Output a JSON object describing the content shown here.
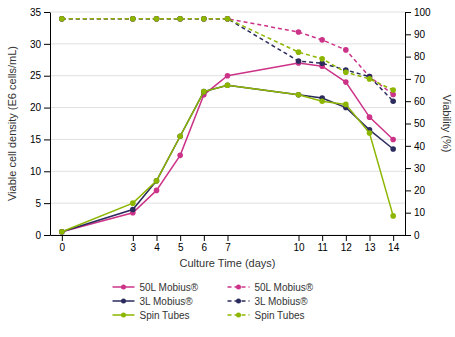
{
  "chart_data": {
    "type": "line",
    "xlabel": "Culture Time (days)",
    "ylabel": "Viable cell density (E6 cells/mL)",
    "y2label": "Viability (%)",
    "x": [
      0,
      3,
      4,
      5,
      6,
      7,
      10,
      11,
      12,
      13,
      14
    ],
    "xlim": [
      -0.5,
      14.5
    ],
    "xticks": [
      0,
      3,
      4,
      5,
      6,
      7,
      10,
      11,
      12,
      13,
      14
    ],
    "ylim": [
      0,
      35
    ],
    "yticks": [
      0,
      5,
      10,
      15,
      20,
      25,
      30,
      35
    ],
    "y2lim": [
      0,
      100
    ],
    "y2ticks": [
      0,
      10,
      20,
      30,
      40,
      50,
      60,
      70,
      80,
      90,
      100
    ],
    "grid": true,
    "legend": "bottom",
    "series": [
      {
        "name": "50L Mobius®",
        "color": "#cc3388",
        "marker": "circle",
        "line_style": "solid",
        "values": [
          0.5,
          3.5,
          7.0,
          12.5,
          22.0,
          25.0,
          27.0,
          26.5,
          24.0,
          18.5,
          15.0
        ]
      },
      {
        "name": "3L Mobius®",
        "color": "#2b2b5e",
        "marker": "circle",
        "line_style": "solid",
        "values": [
          0.5,
          4.0,
          8.5,
          15.5,
          22.5,
          23.5,
          22.0,
          21.5,
          20.0,
          16.5,
          13.5
        ]
      },
      {
        "name": "Spin Tubes",
        "color": "#8db600",
        "marker": "circle",
        "line_style": "solid",
        "values": [
          0.5,
          5.0,
          8.5,
          15.5,
          22.5,
          23.5,
          22.0,
          21.0,
          20.5,
          16.0,
          3.0
        ]
      },
      {
        "name": "50L Mobius®",
        "color": "#cc3388",
        "marker": "circle",
        "line_style": "dashed",
        "axis": "y2",
        "values": [
          97,
          97,
          97,
          97,
          97,
          97,
          91,
          87.5,
          83,
          71,
          63
        ]
      },
      {
        "name": "3L Mobius®",
        "color": "#2b2b5e",
        "marker": "circle",
        "line_style": "dashed",
        "axis": "y2",
        "values": [
          97,
          97,
          97,
          97,
          97,
          97,
          78,
          77,
          74,
          71,
          60
        ]
      },
      {
        "name": "Spin Tubes",
        "color": "#8db600",
        "marker": "circle",
        "line_style": "dashed",
        "axis": "y2",
        "values": [
          97,
          97,
          97,
          97,
          97,
          97,
          82,
          79,
          73,
          70,
          65
        ]
      }
    ]
  }
}
